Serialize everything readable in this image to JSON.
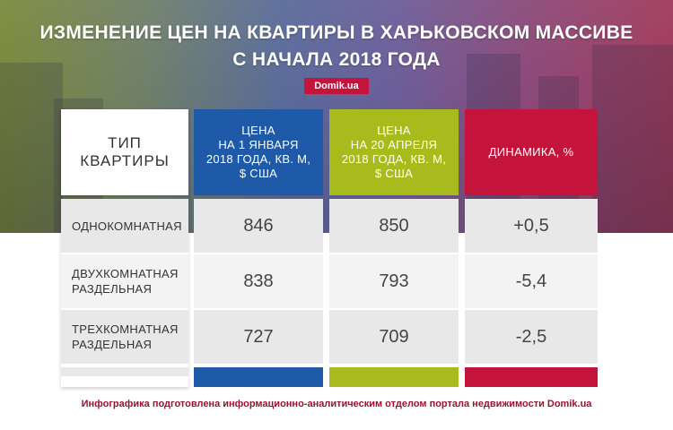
{
  "title_line1": "ИЗМЕНЕНИЕ ЦЕН НА КВАРТИРЫ В ХАРЬКОВСКОМ МАССИВЕ",
  "title_line2": "С НАЧАЛА 2018 ГОДА",
  "badge": "Domik.ua",
  "colors": {
    "blue": "#1e5aa8",
    "green": "#a7bc1c",
    "red": "#c4143c"
  },
  "headers": {
    "type": "ТИП\nКВАРТИРЫ",
    "price_jan": "ЦЕНА\nНА 1 ЯНВАРЯ\n2018 ГОДА, КВ. М,\n$ США",
    "price_apr": "ЦЕНА\nНА 20 АПРЕЛЯ\n2018 ГОДА, КВ. М,\n$ США",
    "dynamics": "ДИНАМИКА, %"
  },
  "rows": [
    {
      "type": "ОДНОКОМНАТНАЯ",
      "price_jan": "846",
      "price_apr": "850",
      "dynamics": "+0,5"
    },
    {
      "type": "ДВУХКОМНАТНАЯ\nРАЗДЕЛЬНАЯ",
      "price_jan": "838",
      "price_apr": "793",
      "dynamics": "-5,4"
    },
    {
      "type": "ТРЕХКОМНАТНАЯ\nРАЗДЕЛЬНАЯ",
      "price_jan": "727",
      "price_apr": "709",
      "dynamics": "-2,5"
    }
  ],
  "footer": "Инфографика подготовлена информационно-аналитическим отделом портала недвижимости Domik.ua",
  "chart_data": {
    "type": "table",
    "title": "ИЗМЕНЕНИЕ ЦЕН НА КВАРТИРЫ В ХАРЬКОВСКОМ МАССИВЕ С НАЧАЛА 2018 ГОДА",
    "columns": [
      "ТИП КВАРТИРЫ",
      "ЦЕНА НА 1 ЯНВАРЯ 2018 ГОДА, КВ. М, $ США",
      "ЦЕНА НА 20 АПРЕЛЯ 2018 ГОДА, КВ. М, $ США",
      "ДИНАМИКА, %"
    ],
    "categories": [
      "ОДНОКОМНАТНАЯ",
      "ДВУХКОМНАТНАЯ РАЗДЕЛЬНАЯ",
      "ТРЕХКОМНАТНАЯ РАЗДЕЛЬНАЯ"
    ],
    "series": [
      {
        "name": "ЦЕНА НА 1 ЯНВАРЯ 2018 ГОДА, КВ. М, $ США",
        "values": [
          846,
          838,
          727
        ]
      },
      {
        "name": "ЦЕНА НА 20 АПРЕЛЯ 2018 ГОДА, КВ. М, $ США",
        "values": [
          850,
          793,
          709
        ]
      },
      {
        "name": "ДИНАМИКА, %",
        "values": [
          0.5,
          -5.4,
          -2.5
        ]
      }
    ]
  }
}
